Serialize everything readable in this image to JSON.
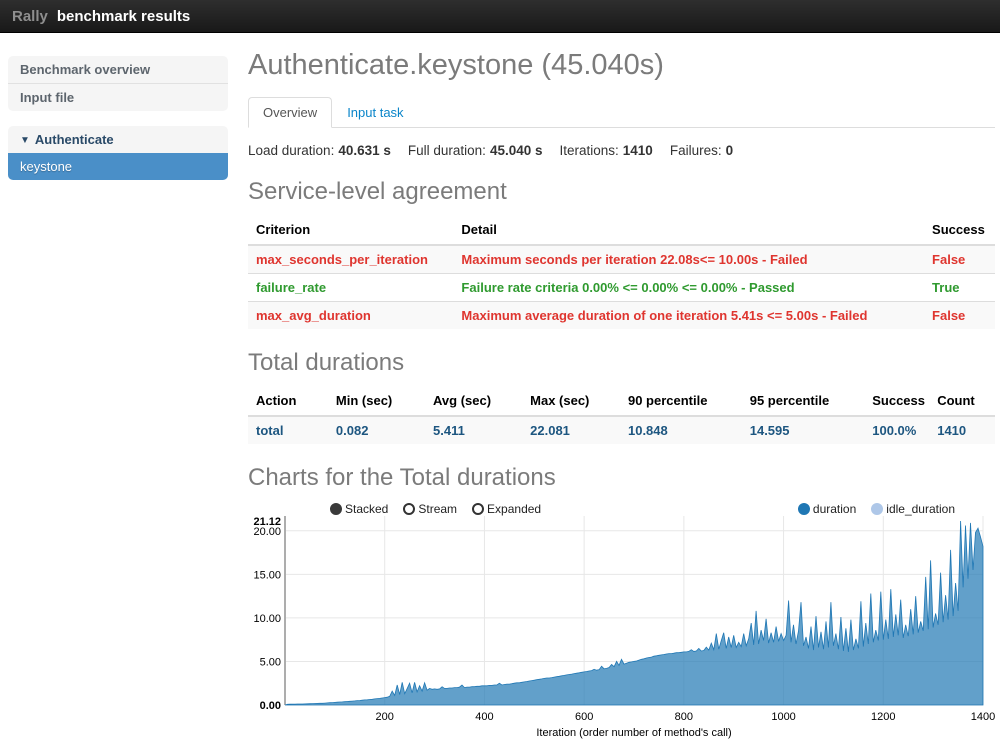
{
  "navbar": {
    "brand_muted": "Rally",
    "brand_bold": "benchmark results"
  },
  "sidebar": {
    "items": [
      {
        "label": "Benchmark overview"
      },
      {
        "label": "Input file"
      }
    ],
    "group": {
      "toggle_icon": "▼",
      "label": "Authenticate",
      "children": [
        {
          "label": "keystone",
          "active": true
        }
      ]
    }
  },
  "main": {
    "title": "Authenticate.keystone (45.040s)",
    "tabs": [
      {
        "label": "Overview",
        "active": true
      },
      {
        "label": "Input task",
        "active": false
      }
    ],
    "stats": [
      {
        "label": "Load duration:",
        "value": "40.631 s"
      },
      {
        "label": "Full duration:",
        "value": "45.040 s"
      },
      {
        "label": "Iterations:",
        "value": "1410"
      },
      {
        "label": "Failures:",
        "value": "0"
      }
    ],
    "sla": {
      "heading": "Service-level agreement",
      "columns": [
        "Criterion",
        "Detail",
        "Success"
      ],
      "rows": [
        {
          "criterion": "max_seconds_per_iteration",
          "detail": "Maximum seconds per iteration 22.08s<= 10.00s - Failed",
          "success": "False",
          "status": "fail"
        },
        {
          "criterion": "failure_rate",
          "detail": "Failure rate criteria 0.00% <= 0.00% <= 0.00% - Passed",
          "success": "True",
          "status": "pass"
        },
        {
          "criterion": "max_avg_duration",
          "detail": "Maximum average duration of one iteration 5.41s <= 5.00s - Failed",
          "success": "False",
          "status": "fail"
        }
      ]
    },
    "durations": {
      "heading": "Total durations",
      "columns": [
        "Action",
        "Min (sec)",
        "Avg (sec)",
        "Max (sec)",
        "90 percentile",
        "95 percentile",
        "Success",
        "Count"
      ],
      "rows": [
        [
          "total",
          "0.082",
          "5.411",
          "22.081",
          "10.848",
          "14.595",
          "100.0%",
          "1410"
        ]
      ]
    },
    "charts": {
      "heading": "Charts for the Total durations",
      "controls": [
        {
          "label": "Stacked",
          "selected": true
        },
        {
          "label": "Stream",
          "selected": false
        },
        {
          "label": "Expanded",
          "selected": false
        }
      ],
      "legend": [
        {
          "label": "duration",
          "color": "#1f77b4"
        },
        {
          "label": "idle_duration",
          "color": "#aec7e8"
        }
      ]
    }
  },
  "colors": {
    "accent": "#4a8fc8",
    "fail_red": "#df352f",
    "pass_green": "#2f9a2f",
    "duration_blue": "#1f77b4",
    "idle_blue": "#aec7e8",
    "heading_gray": "#7b7b7b"
  },
  "chart_data": {
    "type": "area",
    "title": "Charts for the Total durations",
    "xlabel": "Iteration (order number of method's call)",
    "ylabel": "",
    "xlim": [
      0,
      1400
    ],
    "ylim": [
      0,
      21.12
    ],
    "x_ticks": [
      200,
      400,
      600,
      800,
      1000,
      1200,
      1400
    ],
    "y_ticks": [
      0,
      5,
      10,
      15,
      20
    ],
    "y_max_label": "21.12",
    "grid": true,
    "legend_position": "top-right",
    "series": [
      {
        "name": "duration",
        "color": "#1f77b4",
        "fill_opacity": 0.7,
        "x_start": 5,
        "x_step": 5,
        "values": [
          0.08,
          0.09,
          0.1,
          0.1,
          0.11,
          0.12,
          0.12,
          0.13,
          0.14,
          0.15,
          0.16,
          0.17,
          0.18,
          0.19,
          0.2,
          0.22,
          0.24,
          0.26,
          0.28,
          0.3,
          0.32,
          0.34,
          0.36,
          0.38,
          0.4,
          0.42,
          0.45,
          0.47,
          0.5,
          0.52,
          0.55,
          0.58,
          0.6,
          0.63,
          0.66,
          0.7,
          0.73,
          0.76,
          0.8,
          0.85,
          0.9,
          1.0,
          1.6,
          1.1,
          2.3,
          1.2,
          2.6,
          1.3,
          1.9,
          2.5,
          1.4,
          2.6,
          1.5,
          2.2,
          1.6,
          2.55,
          1.7,
          1.9,
          1.8,
          1.85,
          1.8,
          1.85,
          2.1,
          1.9,
          1.9,
          1.95,
          1.95,
          2.0,
          2.0,
          2.05,
          2.3,
          2.0,
          2.05,
          2.05,
          2.1,
          2.1,
          2.15,
          2.15,
          2.2,
          2.2,
          2.2,
          2.25,
          2.25,
          2.3,
          2.3,
          2.5,
          2.3,
          2.35,
          2.4,
          2.4,
          2.45,
          2.5,
          2.55,
          2.55,
          2.6,
          2.65,
          2.7,
          2.75,
          2.8,
          2.85,
          2.9,
          2.95,
          3.0,
          3.05,
          3.1,
          3.1,
          3.15,
          3.2,
          3.25,
          3.3,
          3.35,
          3.4,
          3.45,
          3.5,
          3.55,
          3.6,
          3.65,
          3.7,
          3.75,
          3.8,
          3.85,
          3.9,
          3.95,
          4.1,
          4.0,
          4.05,
          4.45,
          4.15,
          4.2,
          4.3,
          4.65,
          4.4,
          5.0,
          4.55,
          5.25,
          4.7,
          4.8,
          4.9,
          4.95,
          5.0,
          5.05,
          5.15,
          5.25,
          5.3,
          5.4,
          5.45,
          5.5,
          5.6,
          5.65,
          5.7,
          5.75,
          5.8,
          5.85,
          5.9,
          5.9,
          5.95,
          6.0,
          6.0,
          6.05,
          6.1,
          6.1,
          6.15,
          6.35,
          6.15,
          6.2,
          6.5,
          6.2,
          6.25,
          6.65,
          6.3,
          7.1,
          6.35,
          8.2,
          6.4,
          7.4,
          8.3,
          6.5,
          7.8,
          6.6,
          8.0,
          6.6,
          7.2,
          6.7,
          8.2,
          6.8,
          7.6,
          9.4,
          6.9,
          10.8,
          7.0,
          8.6,
          7.4,
          9.9,
          7.1,
          8.3,
          7.2,
          9.0,
          7.3,
          8.2,
          7.4,
          8.0,
          12.0,
          7.2,
          9.2,
          7.0,
          8.5,
          11.8,
          6.8,
          7.8,
          6.5,
          9.0,
          6.3,
          10.2,
          6.6,
          8.4,
          6.4,
          9.6,
          6.6,
          11.8,
          6.8,
          8.2,
          6.4,
          10.1,
          6.2,
          8.8,
          6.1,
          9.8,
          6.3,
          7.6,
          6.5,
          11.9,
          6.7,
          9.4,
          7.0,
          12.8,
          7.2,
          8.6,
          7.4,
          13.0,
          7.5,
          9.8,
          7.6,
          13.3,
          7.8,
          10.4,
          8.0,
          12.1,
          7.7,
          9.2,
          7.9,
          11.0,
          8.1,
          12.5,
          8.3,
          9.6,
          8.5,
          14.7,
          8.7,
          16.6,
          8.9,
          10.5,
          9.2,
          15.2,
          9.5,
          12.6,
          9.8,
          17.8,
          10.2,
          14.0,
          10.8,
          21.12,
          13.5,
          20.6,
          14.5,
          20.9,
          15.5,
          19.8,
          20.3,
          19.3,
          18.2
        ]
      }
    ]
  }
}
